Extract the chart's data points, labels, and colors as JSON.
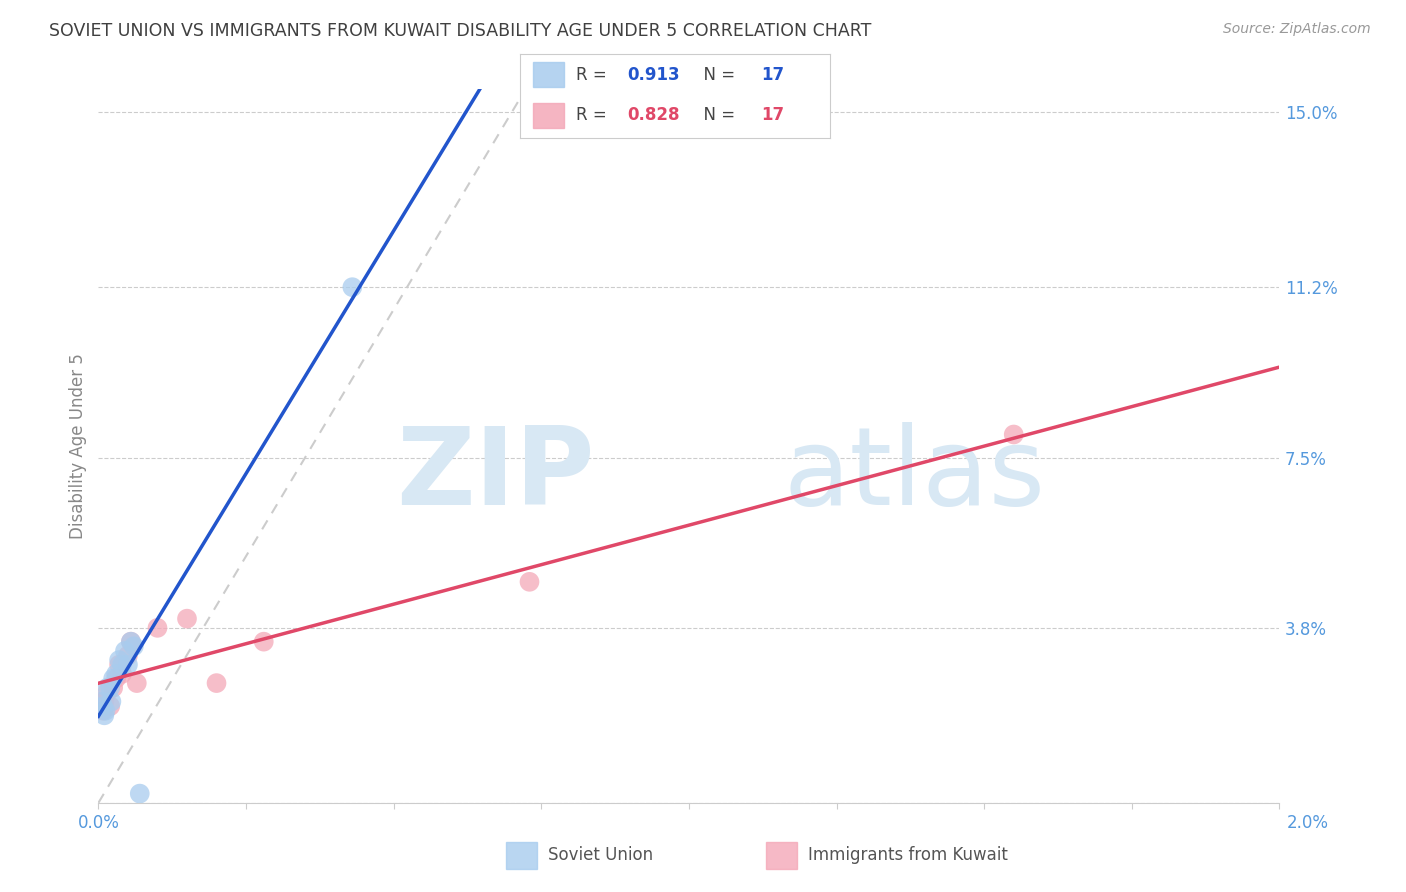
{
  "title": "SOVIET UNION VS IMMIGRANTS FROM KUWAIT DISABILITY AGE UNDER 5 CORRELATION CHART",
  "source": "Source: ZipAtlas.com",
  "ylabel": "Disability Age Under 5",
  "xmin": 0.0,
  "xmax": 0.02,
  "ymin": 0.0,
  "ymax": 0.155,
  "soviet_x": [
    5e-05,
    8e-05,
    0.0001,
    0.00012,
    0.00015,
    0.0002,
    0.00022,
    0.00025,
    0.0003,
    0.00035,
    0.0004,
    0.00045,
    0.0005,
    0.00055,
    0.0006,
    0.0043,
    0.0007
  ],
  "soviet_y": [
    0.022,
    0.021,
    0.019,
    0.02,
    0.025,
    0.025,
    0.022,
    0.027,
    0.028,
    0.031,
    0.03,
    0.033,
    0.03,
    0.035,
    0.034,
    0.112,
    0.002
  ],
  "kuwait_x": [
    8e-05,
    0.0001,
    0.00015,
    0.0002,
    0.00025,
    0.0003,
    0.00035,
    0.0004,
    0.0005,
    0.00055,
    0.00065,
    0.001,
    0.0015,
    0.002,
    0.0028,
    0.0073,
    0.0155
  ],
  "kuwait_y": [
    0.02,
    0.022,
    0.024,
    0.021,
    0.025,
    0.027,
    0.03,
    0.028,
    0.032,
    0.035,
    0.026,
    0.038,
    0.04,
    0.026,
    0.035,
    0.048,
    0.08
  ],
  "soviet_color": "#A8CCEE",
  "kuwait_color": "#F4A8B8",
  "soviet_line_color": "#2255CC",
  "kuwait_line_color": "#E04868",
  "diag_color": "#CCCCCC",
  "grid_color": "#CCCCCC",
  "bg_color": "#FFFFFF",
  "axis_color": "#5599DD",
  "title_color": "#404040",
  "source_color": "#999999",
  "watermark_zip": "ZIP",
  "watermark_atlas": "atlas",
  "watermark_color": "#D8E8F4",
  "right_ytick_vals": [
    0.0,
    0.038,
    0.075,
    0.112,
    0.15
  ],
  "right_ytick_labels": [
    "",
    "3.8%",
    "7.5%",
    "11.2%",
    "15.0%"
  ],
  "legend_r1": "R = ",
  "legend_v1": "0.913",
  "legend_n1": "  N = ",
  "legend_nv1": "17",
  "legend_r2": "R = ",
  "legend_v2": "0.828",
  "legend_n2": "  N = ",
  "legend_nv2": "17"
}
